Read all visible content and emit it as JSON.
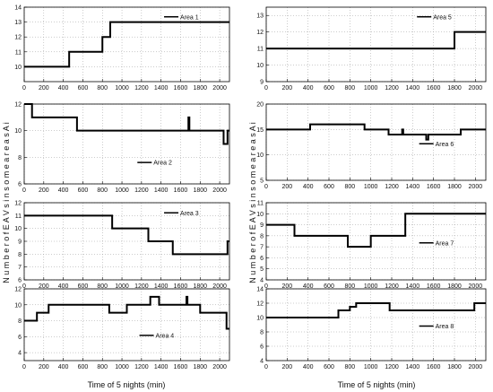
{
  "figure": {
    "ylabel": "N u m b e r  o f  E A V s  i n  s o m e  a r e a s  A i",
    "xlabel": "Time of 5 nights (min)"
  },
  "chart_data": [
    {
      "type": "line",
      "series": [
        {
          "name": "Area 1",
          "x": [
            0,
            460,
            460,
            800,
            800,
            880,
            880,
            2100
          ],
          "y": [
            10,
            10,
            11,
            11,
            12,
            12,
            13,
            13
          ]
        }
      ],
      "xlim": [
        0,
        2100
      ],
      "ylim": [
        9,
        14
      ],
      "xticks": [
        "0",
        "200",
        "400",
        "600",
        "800",
        "1000",
        "1200",
        "1400",
        "1600",
        "1800",
        "2000"
      ],
      "yticks": [
        "10",
        "11",
        "12",
        "13",
        "14"
      ],
      "legend": "top-right",
      "grid": true
    },
    {
      "type": "line",
      "series": [
        {
          "name": "Area 5",
          "x": [
            0,
            1800,
            1800,
            2100
          ],
          "y": [
            11,
            11,
            12,
            12
          ]
        }
      ],
      "xlim": [
        0,
        2100
      ],
      "ylim": [
        9,
        13.5
      ],
      "xticks": [
        "0",
        "200",
        "400",
        "600",
        "800",
        "1000",
        "1200",
        "1400",
        "1600",
        "1800",
        "2000"
      ],
      "yticks": [
        "9",
        "10",
        "11",
        "12",
        "13"
      ],
      "legend": "top-right",
      "grid": true
    },
    {
      "type": "line",
      "series": [
        {
          "name": "Area 2",
          "x": [
            0,
            80,
            80,
            540,
            540,
            1680,
            1680,
            1690,
            1690,
            2040,
            2040,
            2080,
            2080,
            2100
          ],
          "y": [
            12,
            12,
            11,
            11,
            10,
            10,
            11,
            11,
            10,
            10,
            9,
            9,
            10,
            10
          ]
        }
      ],
      "xlim": [
        0,
        2100
      ],
      "ylim": [
        6,
        12
      ],
      "xticks": [
        "0",
        "200",
        "400",
        "600",
        "800",
        "1000",
        "1200",
        "1400",
        "1600",
        "1800",
        "2000"
      ],
      "yticks": [
        "6",
        "8",
        "10",
        "12"
      ],
      "legend": "bottom-center",
      "grid": true
    },
    {
      "type": "line",
      "series": [
        {
          "name": "Area 6",
          "x": [
            0,
            420,
            420,
            940,
            940,
            1170,
            1170,
            1300,
            1300,
            1310,
            1310,
            1530,
            1530,
            1550,
            1550,
            1860,
            1860,
            2100
          ],
          "y": [
            15,
            15,
            16,
            16,
            15,
            15,
            14,
            14,
            15,
            15,
            14,
            14,
            13,
            13,
            14,
            14,
            15,
            15
          ]
        }
      ],
      "xlim": [
        0,
        2100
      ],
      "ylim": [
        5,
        20
      ],
      "xticks": [
        "0",
        "200",
        "400",
        "600",
        "800",
        "1000",
        "1200",
        "1400",
        "1600",
        "1800",
        "2000"
      ],
      "yticks": [
        "5",
        "10",
        "15",
        "20"
      ],
      "legend": "middle-right",
      "grid": true
    },
    {
      "type": "line",
      "series": [
        {
          "name": "Area 3",
          "x": [
            0,
            900,
            900,
            1270,
            1270,
            1520,
            1520,
            2080,
            2080,
            2100
          ],
          "y": [
            11,
            11,
            10,
            10,
            9,
            9,
            8,
            8,
            9,
            9
          ]
        }
      ],
      "xlim": [
        0,
        2100
      ],
      "ylim": [
        6,
        12
      ],
      "xticks": [
        "0",
        "200",
        "400",
        "600",
        "800",
        "1000",
        "1200",
        "1400",
        "1600",
        "1800",
        "2000"
      ],
      "yticks": [
        "6",
        "7",
        "8",
        "9",
        "10",
        "11",
        "12"
      ],
      "legend": "top-right",
      "grid": true
    },
    {
      "type": "line",
      "series": [
        {
          "name": "Area 7",
          "x": [
            0,
            270,
            270,
            780,
            780,
            1000,
            1000,
            1330,
            1330,
            2100
          ],
          "y": [
            9,
            9,
            8,
            8,
            7,
            7,
            8,
            8,
            10,
            10
          ]
        }
      ],
      "xlim": [
        0,
        2100
      ],
      "ylim": [
        4,
        11
      ],
      "xticks": [
        "0",
        "200",
        "400",
        "600",
        "800",
        "1000",
        "1200",
        "1400",
        "1600",
        "1800",
        "2000"
      ],
      "yticks": [
        "4",
        "5",
        "6",
        "7",
        "8",
        "9",
        "10",
        "11"
      ],
      "legend": "middle-right",
      "grid": true
    },
    {
      "type": "line",
      "series": [
        {
          "name": "Area 4",
          "x": [
            0,
            130,
            130,
            250,
            250,
            870,
            870,
            1050,
            1050,
            1290,
            1290,
            1380,
            1380,
            1660,
            1660,
            1670,
            1670,
            1800,
            1800,
            2070,
            2070,
            2100
          ],
          "y": [
            8,
            8,
            9,
            9,
            10,
            10,
            9,
            9,
            10,
            10,
            11,
            11,
            10,
            10,
            11,
            11,
            10,
            10,
            9,
            9,
            7,
            7
          ]
        }
      ],
      "xlim": [
        0,
        2100
      ],
      "ylim": [
        3,
        12
      ],
      "xticks": [
        "0",
        "200",
        "400",
        "600",
        "800",
        "1000",
        "1200",
        "1400",
        "1600",
        "1800",
        "2000"
      ],
      "yticks": [
        "4",
        "6",
        "8",
        "10",
        "12"
      ],
      "legend": "bottom-right",
      "grid": true
    },
    {
      "type": "line",
      "series": [
        {
          "name": "Area 8",
          "x": [
            0,
            690,
            690,
            800,
            800,
            860,
            860,
            1180,
            1180,
            1990,
            1990,
            2100
          ],
          "y": [
            10,
            10,
            11,
            11,
            11.5,
            11.5,
            12,
            12,
            11,
            11,
            12,
            12
          ]
        }
      ],
      "xlim": [
        0,
        2100
      ],
      "ylim": [
        4,
        14
      ],
      "xticks": [
        "0",
        "200",
        "400",
        "600",
        "800",
        "1000",
        "1200",
        "1400",
        "1600",
        "1800",
        "2000"
      ],
      "yticks": [
        "4",
        "6",
        "8",
        "10",
        "12",
        "14"
      ],
      "legend": "middle-right",
      "grid": true
    }
  ]
}
